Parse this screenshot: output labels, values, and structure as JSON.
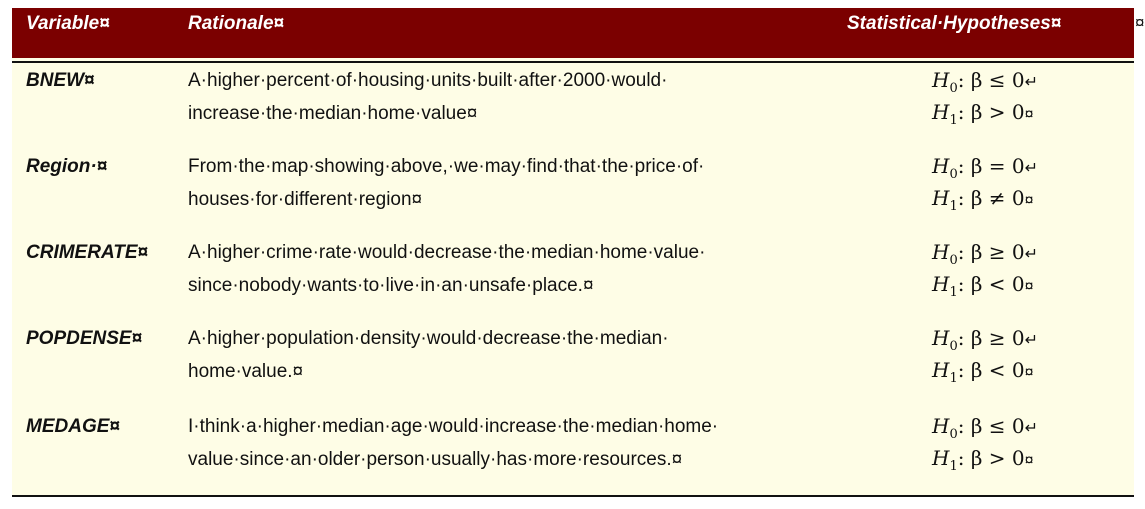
{
  "header": {
    "variable": "Variable¤",
    "rationale": "Rationale¤",
    "hypotheses": "Statistical·Hypotheses¤",
    "trailing_mark": "¤"
  },
  "rows": [
    {
      "variable": "BNEW¤",
      "rationale_line1": "A·higher·percent·of·housing·units·built·after·2000·would·",
      "rationale_line2": "increase·the·median·home·value¤",
      "h0_relation": ": β ≤ 0",
      "h0_end": "↵",
      "h1_relation": ": β > 0",
      "h1_end": "¤"
    },
    {
      "variable": "Region·¤",
      "rationale_line1": "From·the·map·showing·above,·we·may·find·that·the·price·of·",
      "rationale_line2": "houses·for·different·region¤",
      "h0_relation": ": β = 0",
      "h0_end": "↵",
      "h1_relation": ": β ≠ 0",
      "h1_end": "¤"
    },
    {
      "variable": "CRIMERATE¤",
      "rationale_line1": "A·higher·crime·rate·would·decrease·the·median·home·value·",
      "rationale_line2": "since·nobody·wants·to·live·in·an·unsafe·place.¤",
      "h0_relation": ": β ≥ 0",
      "h0_end": "↵",
      "h1_relation": ": β < 0",
      "h1_end": "¤"
    },
    {
      "variable": "POPDENSE¤",
      "rationale_line1": "A·higher·population·density·would·decrease·the·median·",
      "rationale_line2": "home·value.¤",
      "h0_relation": ": β ≥ 0",
      "h0_end": "↵",
      "h1_relation": ": β < 0",
      "h1_end": "¤"
    },
    {
      "variable": "MEDAGE¤",
      "rationale_line1": "I·think·a·higher·median·age·would·increase·the·median·home·",
      "rationale_line2": "value·since·an·older·person·usually·has·more·resources.¤",
      "h0_relation": ": β ≤ 0",
      "h0_end": "↵",
      "h1_relation": ": β > 0",
      "h1_end": "¤"
    }
  ],
  "hypothesis_symbol": "H",
  "h0_subscript": "0",
  "h1_subscript": "1"
}
